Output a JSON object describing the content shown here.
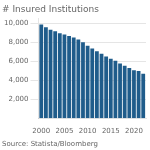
{
  "chart_data": {
    "type": "bar",
    "title": "# Insured Institutions",
    "annotations": [
      "Source: Statista/Bloomberg"
    ],
    "x": [
      2000,
      2001,
      2002,
      2003,
      2004,
      2005,
      2006,
      2007,
      2008,
      2009,
      2010,
      2011,
      2012,
      2013,
      2014,
      2015,
      2016,
      2017,
      2018,
      2019,
      2020,
      2021,
      2022
    ],
    "values": [
      9904,
      9614,
      9354,
      9181,
      8976,
      8833,
      8680,
      8534,
      8305,
      8012,
      7657,
      7357,
      7083,
      6812,
      6509,
      6270,
      6058,
      5787,
      5542,
      5303,
      5066,
      4978,
      4706
    ],
    "color": "#1f5c8b",
    "xlim": [
      1999.4,
      2022.6
    ],
    "xticks": [
      2000,
      2005,
      2010,
      2015,
      2020
    ],
    "ylim": [
      0,
      10500
    ],
    "yticks": [
      {
        "value": 2000,
        "label": "2,000"
      },
      {
        "value": 4000,
        "label": "4,000"
      },
      {
        "value": 6000,
        "label": "6,000"
      },
      {
        "value": 8000,
        "label": "8,000"
      },
      {
        "value": 10000,
        "label": "10,000"
      }
    ],
    "grid": "y"
  }
}
